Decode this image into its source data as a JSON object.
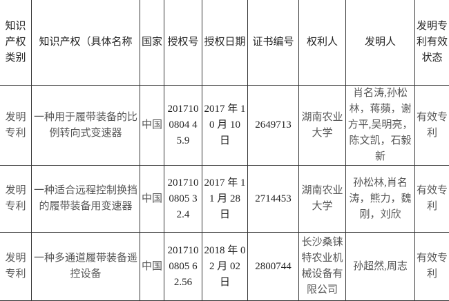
{
  "headers": [
    "知识产权类别",
    "知识产权（具体名称",
    "国家",
    "授权号",
    "授权日期",
    "证书编号",
    "权利人",
    "发明人",
    "发明专利有效状态"
  ],
  "rows": [
    {
      "category": "发明专利",
      "name": "一种用于履带装备的比例转向式变速器",
      "country": "中国",
      "grant_no": "2017100804 45.9",
      "grant_date": "2017 年 10 月 10 日",
      "cert_no": "2649713",
      "owner": "湖南农业大学",
      "inventors": "肖名涛,孙松林，蒋蘋，谢方平,吴明亮，陈文凯，石毅新",
      "status": "有效专利"
    },
    {
      "category": "发明专利",
      "name": "一种适合远程控制换挡的履带装备用变速器",
      "country": "中国",
      "grant_no": "2017100805 32.4",
      "grant_date": "2017 年 11 月 28 日",
      "cert_no": "2714453",
      "owner": "湖南农业大学",
      "inventors": "孙松林,肖名涛，熊力，魏刚，刘欣",
      "status": "有效专利"
    },
    {
      "category": "发明专利",
      "name": "一种多通道履带装备遥控设备",
      "country": "中国",
      "grant_no": "2017100805 62.56",
      "grant_date": "2018 年 02 月 02 日",
      "cert_no": "2800744",
      "owner": "长沙桑铼特农业机械设备有限公司",
      "inventors": "孙超然,周志",
      "status": "有效专利"
    }
  ]
}
